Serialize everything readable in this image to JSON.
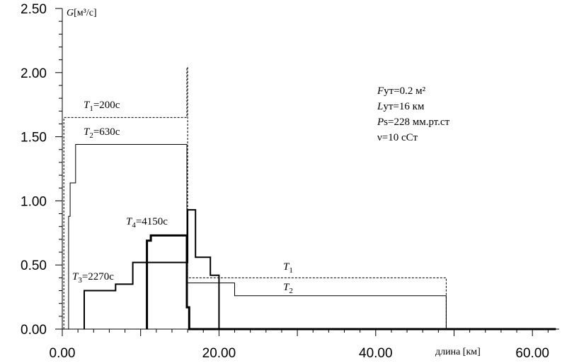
{
  "chart_data": {
    "type": "line",
    "xlim": [
      0,
      63
    ],
    "ylim": [
      0,
      2.5
    ],
    "xticks": [
      0,
      20,
      40,
      60
    ],
    "xtick_labels": [
      "0.00",
      "20.00",
      "40.00",
      "60.00"
    ],
    "yticks": [
      0,
      0.5,
      1.0,
      1.5,
      2.0,
      2.5
    ],
    "ytick_labels": [
      "0.00",
      "0.50",
      "1.00",
      "1.50",
      "2.00",
      "2.50"
    ],
    "ylabel": {
      "italic": "G",
      "rest": "[м³/с]"
    },
    "xlabel": "длина [км]",
    "params": [
      {
        "italic": "F",
        "rest": "ут=0.2 м²"
      },
      {
        "italic": "L",
        "rest": "ут=16 км"
      },
      {
        "italic": "P",
        "rest": "s=228 мм.рт.ст"
      },
      {
        "italic": "",
        "rest": "ν=10 сСт"
      }
    ],
    "series": [
      {
        "name": "T1",
        "style": "dashed",
        "width": 1,
        "x": [
          0.2,
          0.2,
          15.9,
          15.9,
          16.0,
          16.0,
          49.0,
          49.0
        ],
        "y": [
          0,
          1.65,
          1.65,
          2.04,
          2.04,
          0.4,
          0.4,
          0
        ]
      },
      {
        "name": "T2",
        "style": "solid",
        "width": 1,
        "x": [
          0.8,
          0.8,
          1.0,
          1.0,
          1.7,
          1.7,
          15.9,
          15.9,
          22.0,
          22.0,
          49.0,
          49.0
        ],
        "y": [
          0,
          0.88,
          0.88,
          1.14,
          1.14,
          1.44,
          1.44,
          0.36,
          0.36,
          0.26,
          0.26,
          0
        ],
        "label": {
          "italic": "T",
          "sub": "2",
          "rest": "=630с"
        }
      },
      {
        "name": "T3",
        "style": "solid",
        "width": 2,
        "x": [
          2.8,
          2.8,
          6.8,
          6.8,
          9.0,
          9.0,
          16.0,
          16.0,
          17.0,
          17.0,
          18.9,
          18.9,
          20.0,
          20.0
        ],
        "y": [
          0,
          0.3,
          0.3,
          0.35,
          0.35,
          0.52,
          0.52,
          0.93,
          0.93,
          0.56,
          0.56,
          0.42,
          0.42,
          0
        ],
        "label": {
          "italic": "T",
          "sub": "3",
          "rest": "=2270с"
        }
      },
      {
        "name": "T4",
        "style": "solid",
        "width": 3,
        "x": [
          10.8,
          10.8,
          11.3,
          11.3,
          15.9,
          15.9,
          16.2,
          16.2,
          63.0
        ],
        "y": [
          0,
          0.69,
          0.69,
          0.73,
          0.73,
          0.17,
          0.17,
          0,
          0
        ],
        "label": {
          "italic": "T",
          "sub": "4",
          "rest": "=4150с"
        }
      }
    ],
    "labels": {
      "T1_main": {
        "italic": "T",
        "sub": "1",
        "rest": "=200с"
      },
      "T1_right": {
        "italic": "T",
        "sub": "1"
      },
      "T2_right": {
        "italic": "T",
        "sub": "2"
      }
    }
  }
}
